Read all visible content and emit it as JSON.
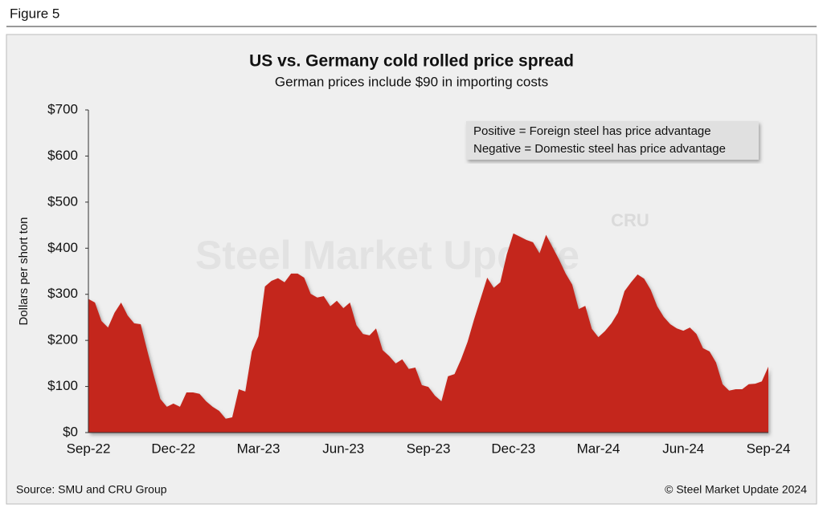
{
  "figure_label": "Figure 5",
  "chart_data": {
    "type": "area",
    "title": "US vs. Germany cold rolled price spread",
    "subtitle": "German prices include $90 in importing costs",
    "y_label": "Dollars per short ton",
    "annotations": [
      "Positive = Foreign steel has price advantage",
      "Negative = Domestic steel has price advantage"
    ],
    "watermark": [
      "Steel Market Update",
      "CRU"
    ],
    "categories": [
      "Sep-22",
      null,
      null,
      null,
      null,
      null,
      null,
      null,
      null,
      null,
      null,
      null,
      null,
      "Dec-22",
      null,
      null,
      null,
      null,
      null,
      null,
      null,
      null,
      null,
      null,
      null,
      null,
      "Mar-23",
      null,
      null,
      null,
      null,
      null,
      null,
      null,
      null,
      null,
      null,
      null,
      null,
      "Jun-23",
      null,
      null,
      null,
      null,
      null,
      null,
      null,
      null,
      null,
      null,
      null,
      null,
      "Sep-23",
      null,
      null,
      null,
      null,
      null,
      null,
      null,
      null,
      null,
      null,
      null,
      null,
      "Dec-23",
      null,
      null,
      null,
      null,
      null,
      null,
      null,
      null,
      null,
      null,
      null,
      null,
      "Mar-24",
      null,
      null,
      null,
      null,
      null,
      null,
      null,
      null,
      null,
      null,
      null,
      null,
      "Jun-24",
      null,
      null,
      null,
      null,
      null,
      null,
      null,
      null,
      null,
      null,
      null,
      null,
      "Sep-24"
    ],
    "values": [
      290,
      282,
      242,
      228,
      260,
      282,
      254,
      237,
      235,
      178,
      124,
      73,
      56,
      63,
      56,
      87,
      87,
      84,
      68,
      56,
      47,
      30,
      33,
      94,
      89,
      176,
      209,
      317,
      329,
      335,
      326,
      345,
      345,
      336,
      301,
      293,
      296,
      274,
      286,
      270,
      282,
      233,
      214,
      211,
      226,
      179,
      166,
      150,
      159,
      138,
      141,
      103,
      99,
      80,
      68,
      122,
      127,
      159,
      197,
      246,
      291,
      336,
      314,
      326,
      387,
      432,
      425,
      418,
      413,
      389,
      429,
      402,
      375,
      345,
      321,
      268,
      275,
      225,
      207,
      220,
      237,
      260,
      307,
      326,
      343,
      334,
      310,
      274,
      251,
      235,
      226,
      221,
      228,
      214,
      183,
      176,
      152,
      105,
      91,
      94,
      94,
      105,
      106,
      111,
      143
    ],
    "color": "#c4281c",
    "ylim": [
      0,
      700
    ],
    "yticks": [
      {
        "value": 0,
        "label": "$0"
      },
      {
        "value": 100,
        "label": "$100"
      },
      {
        "value": 200,
        "label": "$200"
      },
      {
        "value": 300,
        "label": "$300"
      },
      {
        "value": 400,
        "label": "$400"
      },
      {
        "value": 500,
        "label": "$500"
      },
      {
        "value": 600,
        "label": "$600"
      },
      {
        "value": 700,
        "label": "$700"
      }
    ],
    "source": "Source: SMU and CRU Group",
    "copyright": "© Steel Market Update 2024"
  }
}
